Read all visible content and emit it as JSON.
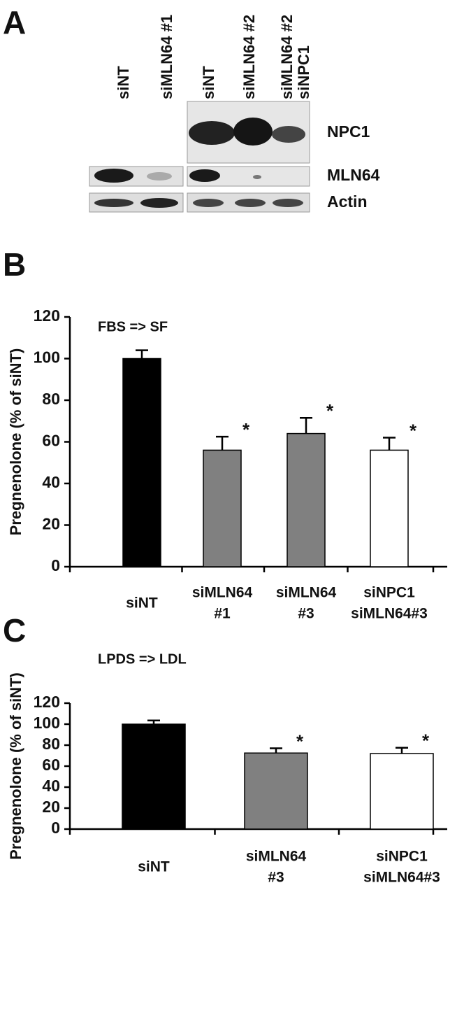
{
  "blot": {
    "panel_label": "A",
    "lanes": [
      [
        "siNT"
      ],
      [
        "siMLN64 #1"
      ],
      [
        "siNT"
      ],
      [
        "siMLN64 #2"
      ],
      [
        "siMLN64 #2",
        "siNPC1"
      ]
    ],
    "rows": [
      "NPC1",
      "MLN64",
      "Actin"
    ]
  },
  "chart_data": [
    {
      "type": "bar",
      "panel_label": "B",
      "title": "FBS => SF",
      "y_label": "Pregnenolone (% of siNT)",
      "categories": [
        [
          "siNT"
        ],
        [
          "siMLN64",
          "#1"
        ],
        [
          "siMLN64",
          "#3"
        ],
        [
          "siNPC1",
          "siMLN64#3"
        ]
      ],
      "values": [
        100,
        56,
        64,
        56
      ],
      "errors": [
        4,
        6.5,
        7.5,
        6
      ],
      "annotations": [
        null,
        "*",
        "*",
        "*"
      ],
      "colors": [
        "#000000",
        "#808080",
        "#808080",
        "#ffffff"
      ],
      "ylim": [
        0,
        120
      ],
      "yticks": [
        0,
        20,
        40,
        60,
        80,
        100,
        120
      ],
      "grid": false
    },
    {
      "type": "bar",
      "panel_label": "C",
      "title": "LPDS => LDL",
      "y_label": "Pregnenolone (% of siNT)",
      "categories": [
        [
          "siNT"
        ],
        [
          "siMLN64",
          "#3"
        ],
        [
          "siNPC1",
          "siMLN64#3"
        ]
      ],
      "values": [
        100,
        72.5,
        72
      ],
      "errors": [
        3.5,
        4.5,
        5.5
      ],
      "annotations": [
        null,
        "*",
        "*"
      ],
      "colors": [
        "#000000",
        "#808080",
        "#ffffff"
      ],
      "ylim": [
        0,
        120
      ],
      "yticks": [
        0,
        20,
        40,
        60,
        80,
        100,
        120
      ],
      "grid": false
    }
  ]
}
